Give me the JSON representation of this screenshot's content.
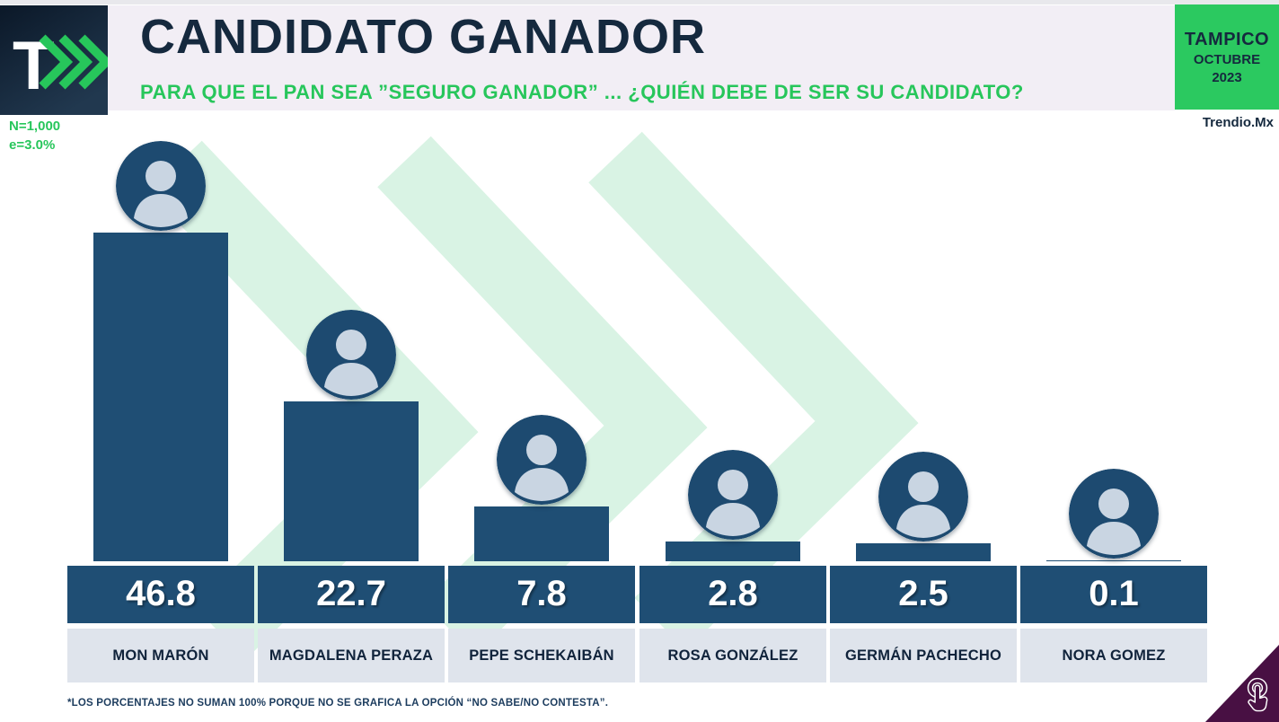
{
  "header": {
    "logo_letter": "T",
    "title": "CANDIDATO GANADOR",
    "subtitle": "PARA QUE EL PAN SEA ”SEGURO GANADOR” ... ¿QUIÉN DEBE DE SER SU CANDIDATO?",
    "location": {
      "city": "TAMPICO",
      "month": "OCTUBRE",
      "year": "2023"
    },
    "brand": "Trendio.Mx",
    "sample_n": "N=1,000",
    "sample_e": "e=3.0%"
  },
  "chart_data": {
    "type": "bar",
    "title": "CANDIDATO GANADOR",
    "question": "PARA QUE EL PAN SEA ”SEGURO GANADOR” ... ¿QUIÉN DEBE DE SER SU CANDIDATO?",
    "categories": [
      "MON MARÓN",
      "MAGDALENA PERAZA",
      "PEPE SCHEKAIBÁN",
      "ROSA GONZÁLEZ",
      "GERMÁN PACHECHO",
      "NORA GOMEZ"
    ],
    "values": [
      46.8,
      22.7,
      7.8,
      2.8,
      2.5,
      0.1
    ],
    "value_labels": [
      "46.8",
      "22.7",
      "7.8",
      "2.8",
      "2.5",
      "0.1"
    ],
    "unit": "%",
    "ylim": [
      0,
      50
    ],
    "grid": false,
    "legend": "none",
    "orientation": "vertical",
    "bar_color": "#1f4e74"
  },
  "footnote": "*LOS PORCENTAJES NO SUMAN 100% PORQUE NO SE GRAFICA LA OPCIÓN “NO SABE/NO CONTESTA”.",
  "colors": {
    "accent_green": "#27c65b",
    "badge_green": "#2bc960",
    "bar_navy": "#1f4e74",
    "title_navy": "#15293e",
    "name_band": "#dfe4ec",
    "header_band": "#f2eef5",
    "watermark_green": "#d9f3e4",
    "corner_purple": "#481043"
  },
  "icons": {
    "logo_chevrons": "triple-right-chevron",
    "corner": "tap-hand-icon",
    "photo_placeholder": "person-avatar"
  }
}
